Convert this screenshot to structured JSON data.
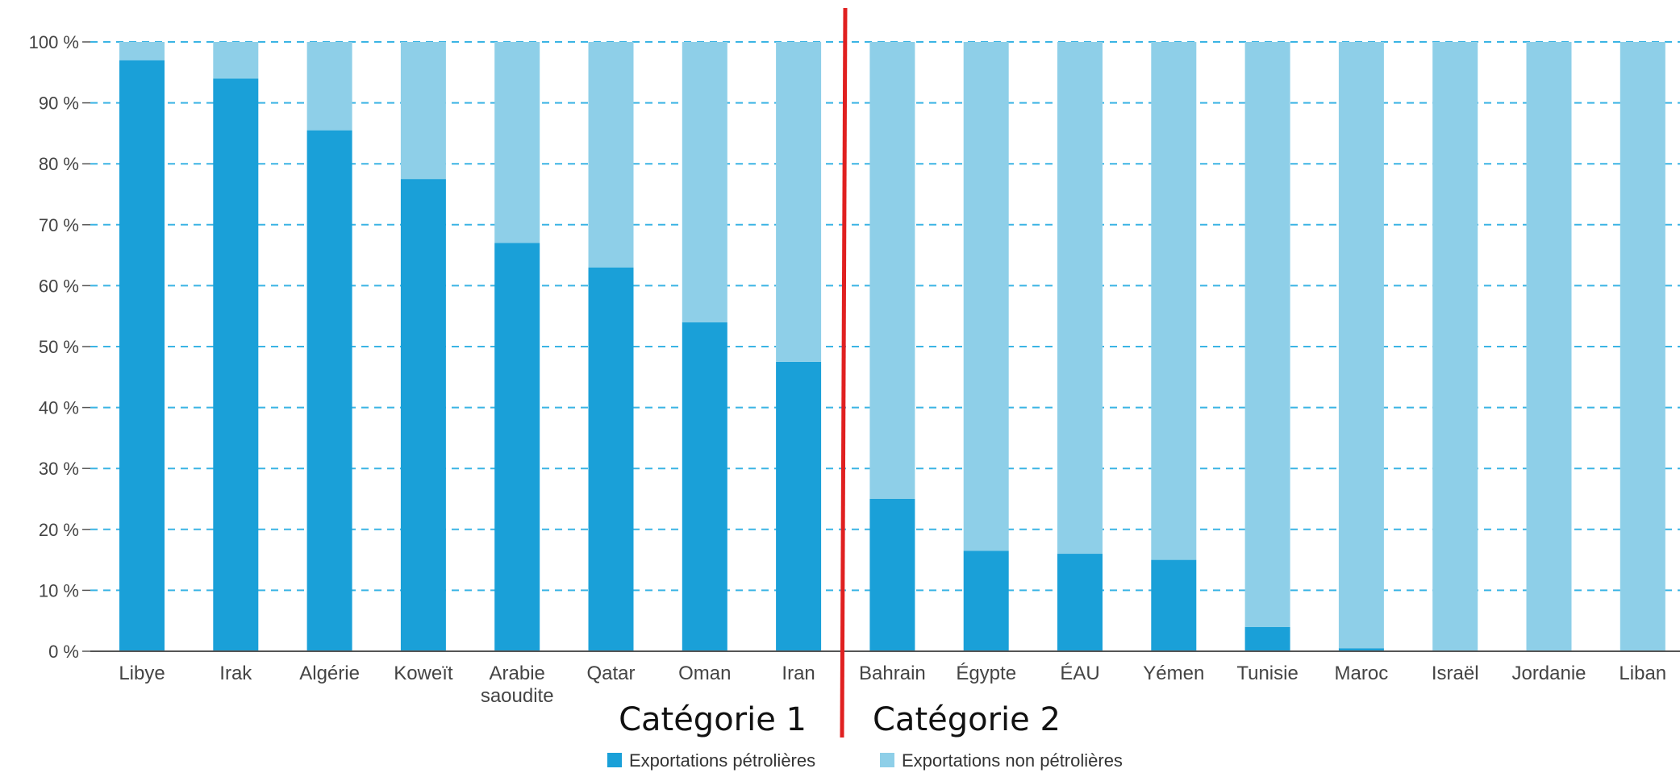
{
  "chart_data": {
    "type": "bar",
    "stacked": true,
    "categories": [
      [
        "Libye"
      ],
      [
        "Irak"
      ],
      [
        "Algérie"
      ],
      [
        "Koweït"
      ],
      [
        "Arabie",
        "saoudite"
      ],
      [
        "Qatar"
      ],
      [
        "Oman"
      ],
      [
        "Iran"
      ],
      [
        "Bahrain"
      ],
      [
        "Égypte"
      ],
      [
        "ÉAU"
      ],
      [
        "Yémen"
      ],
      [
        "Tunisie"
      ],
      [
        "Maroc"
      ],
      [
        "Israël"
      ],
      [
        "Jordanie"
      ],
      [
        "Liban"
      ]
    ],
    "series": [
      {
        "name": "Exportations pétrolières",
        "color": "#1aa0d8",
        "values": [
          97,
          94,
          85.5,
          77.5,
          67,
          63,
          54,
          47.5,
          25,
          16.5,
          16,
          15,
          4,
          0.5,
          0,
          0,
          0
        ]
      },
      {
        "name": "Exportations non pétrolières",
        "color": "#8ecfe8",
        "values": [
          3,
          6,
          14.5,
          22.5,
          33,
          37,
          46,
          52.5,
          75,
          83.5,
          84,
          85,
          96,
          99.5,
          100,
          100,
          100
        ]
      }
    ],
    "yticks": [
      "0 %",
      "10 %",
      "20 %",
      "30 %",
      "40 %",
      "50 %",
      "60 %",
      "70 %",
      "80 %",
      "90 %",
      "100 %"
    ],
    "ylim": [
      0,
      100
    ],
    "grid": true,
    "grid_color": "#3ab4e4",
    "divider_color": "#e02020",
    "group_labels": [
      "Catégorie 1",
      "Catégorie 2"
    ],
    "legend_placement": "bottom-center"
  }
}
